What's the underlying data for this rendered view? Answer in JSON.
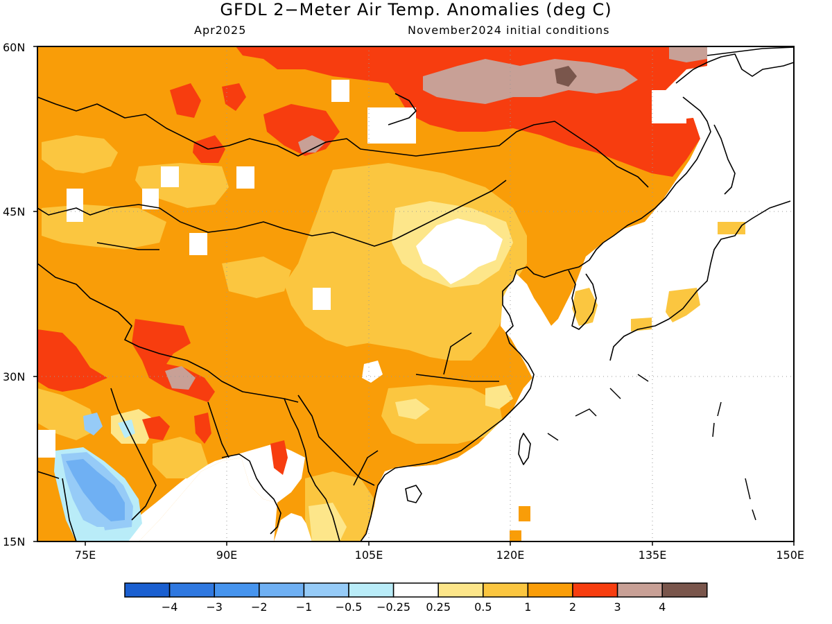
{
  "title": "GFDL 2−Meter Air Temp. Anomalies (deg C)",
  "valid_month": "Apr2025",
  "initial_conditions": "November2024 initial conditions",
  "lat_labels": [
    "60N",
    "45N",
    "30N",
    "15N"
  ],
  "lon_labels": [
    "75E",
    "90E",
    "105E",
    "120E",
    "135E",
    "150E"
  ],
  "map_extent": {
    "lon_min": 70,
    "lon_max": 150,
    "lat_min": 15,
    "lat_max": 60
  },
  "colorbar": {
    "colors": [
      "#1a5fd0",
      "#2f78e0",
      "#4694ee",
      "#6fb0f3",
      "#96cbf7",
      "#b9ecf8",
      "#ffffff",
      "#fde68a",
      "#fbc640",
      "#f99d08",
      "#f73d0f",
      "#c8a096",
      "#7a564c"
    ],
    "labels": [
      "−4",
      "−3",
      "−2",
      "−1",
      "−0.5",
      "−0.25",
      "0.25",
      "0.5",
      "1",
      "2",
      "3",
      "4"
    ]
  },
  "colors": {
    "ocean": "#ffffff",
    "land_base": "#f99d08",
    "coast": "#000000",
    "grid": "#888888"
  }
}
